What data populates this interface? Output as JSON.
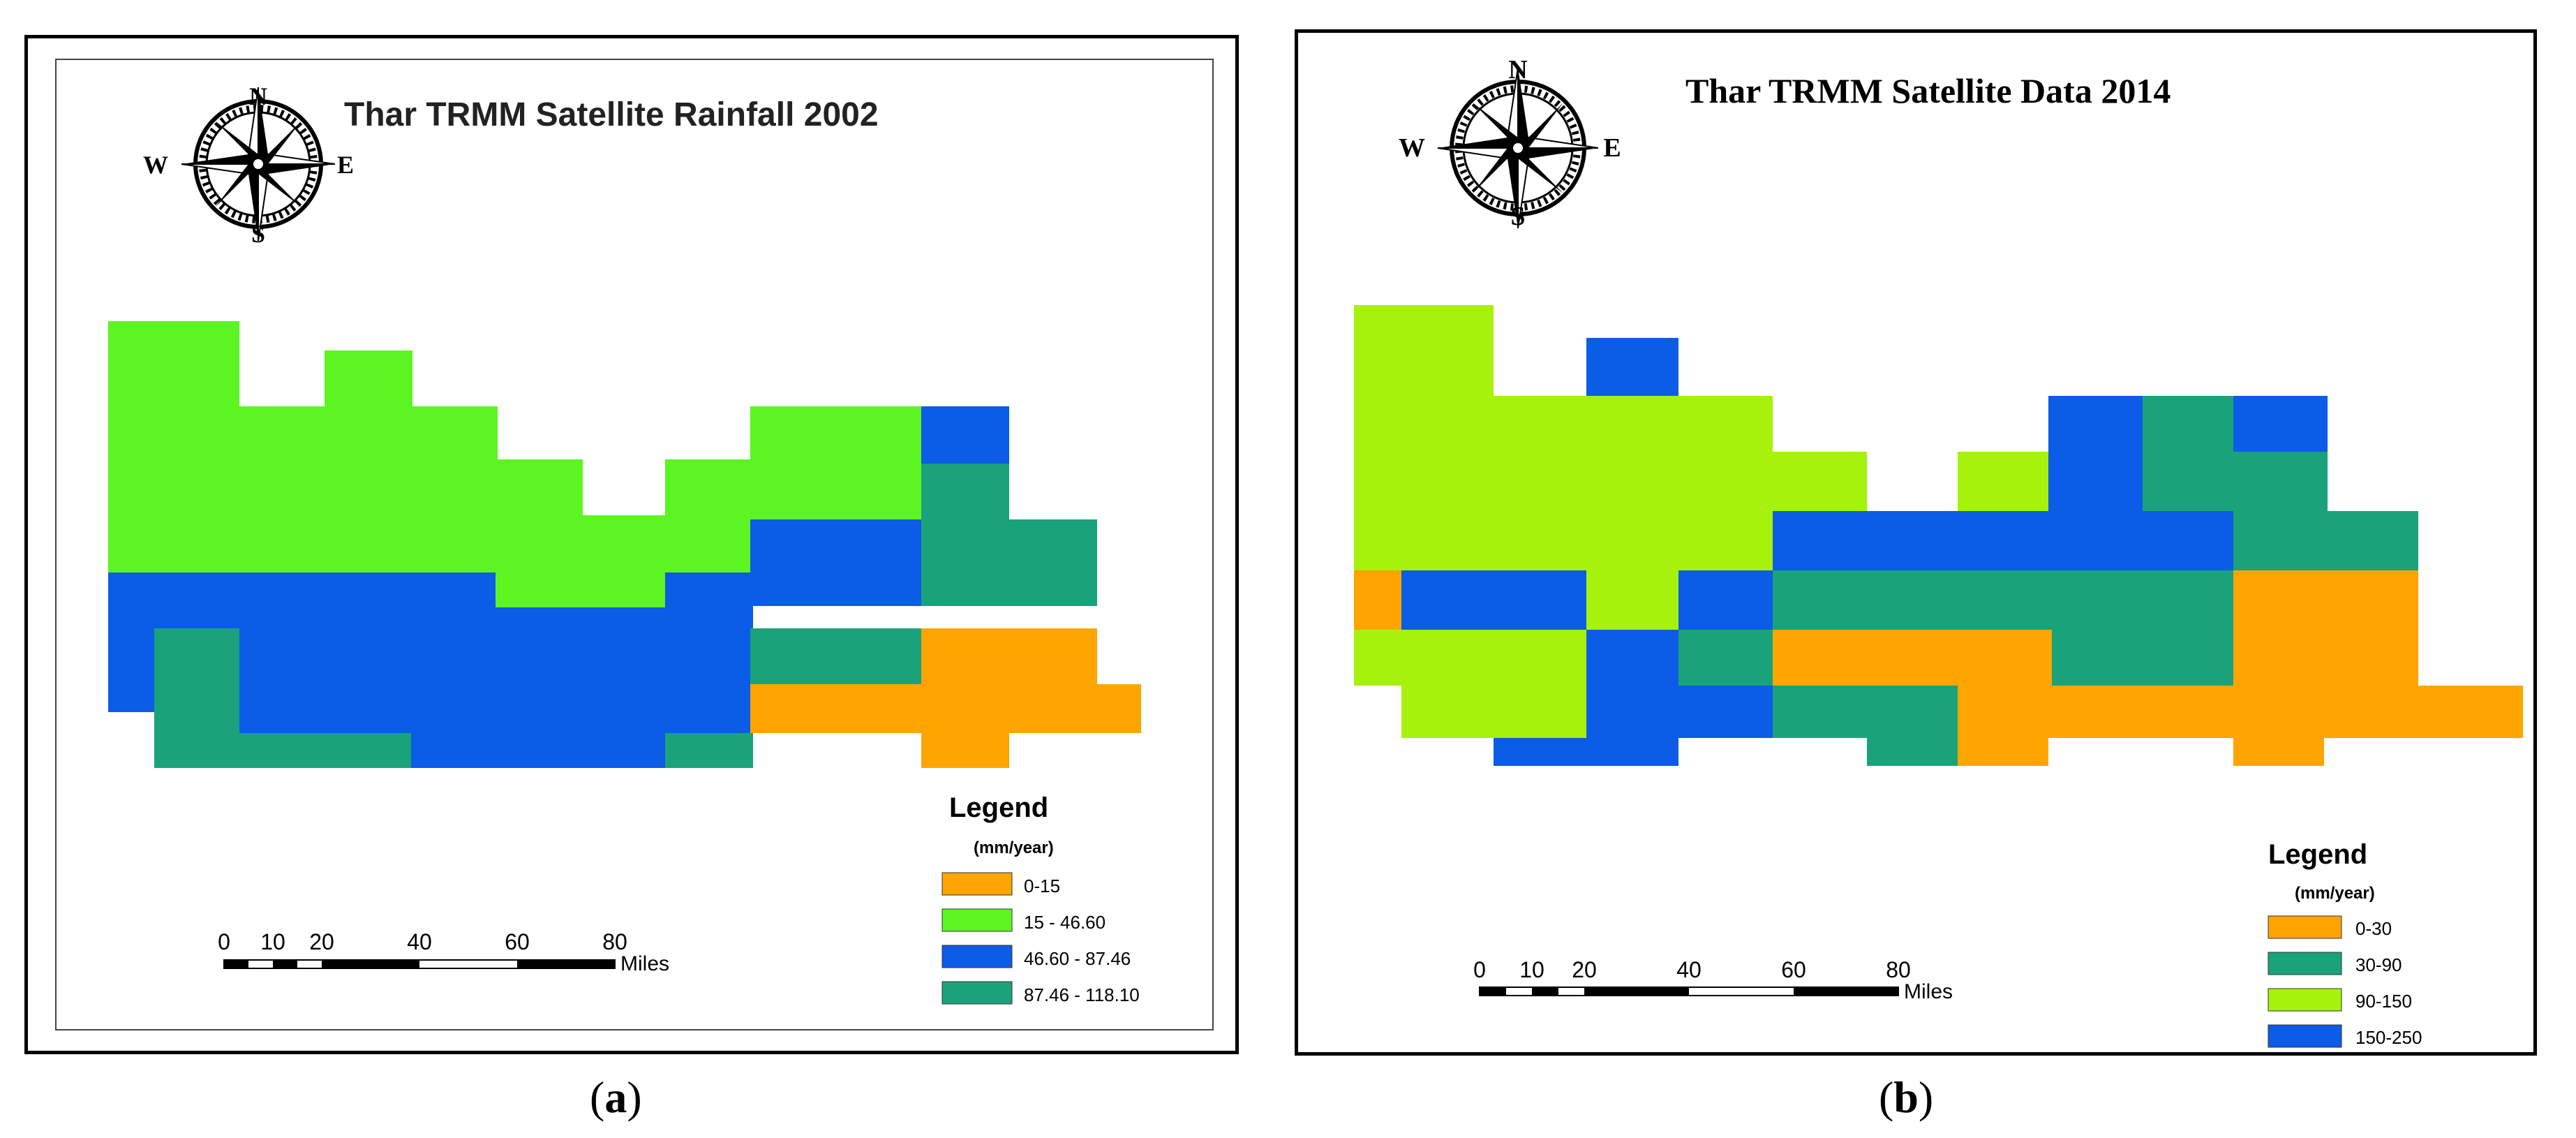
{
  "figure": {
    "panels": [
      {
        "id": "a",
        "caption_letter": "a",
        "title": "Thar TRMM Satellite Rainfall 2002",
        "legend": {
          "heading": "Legend",
          "unit": "(mm/year)",
          "classes": [
            {
              "label": "0-15",
              "color": "#FFA500"
            },
            {
              "label": "15 - 46.60",
              "color": "#5CF522"
            },
            {
              "label": "46.60 - 87.46",
              "color": "#0B5CE6"
            },
            {
              "label": "87.46 - 118.10",
              "color": "#1AA37A"
            }
          ]
        },
        "scale_bar": {
          "ticks": [
            "0",
            "10",
            "20",
            "40",
            "60",
            "80"
          ],
          "unit": "Miles"
        },
        "compass": {
          "n": "N",
          "s": "S",
          "e": "E",
          "w": "W"
        }
      },
      {
        "id": "b",
        "caption_letter": "b",
        "title": "Thar TRMM Satellite Data 2014",
        "legend": {
          "heading": "Legend",
          "unit": "(mm/year)",
          "classes": [
            {
              "label": "0-30",
              "color": "#FFA500"
            },
            {
              "label": "30-90",
              "color": "#1AA37A"
            },
            {
              "label": "90-150",
              "color": "#A6F20C"
            },
            {
              "label": "150-250",
              "color": "#0B5CE6"
            }
          ]
        },
        "scale_bar": {
          "ticks": [
            "0",
            "10",
            "20",
            "40",
            "60",
            "80"
          ],
          "unit": "Miles"
        },
        "compass": {
          "n": "N",
          "s": "S",
          "e": "E",
          "w": "W"
        }
      }
    ]
  }
}
